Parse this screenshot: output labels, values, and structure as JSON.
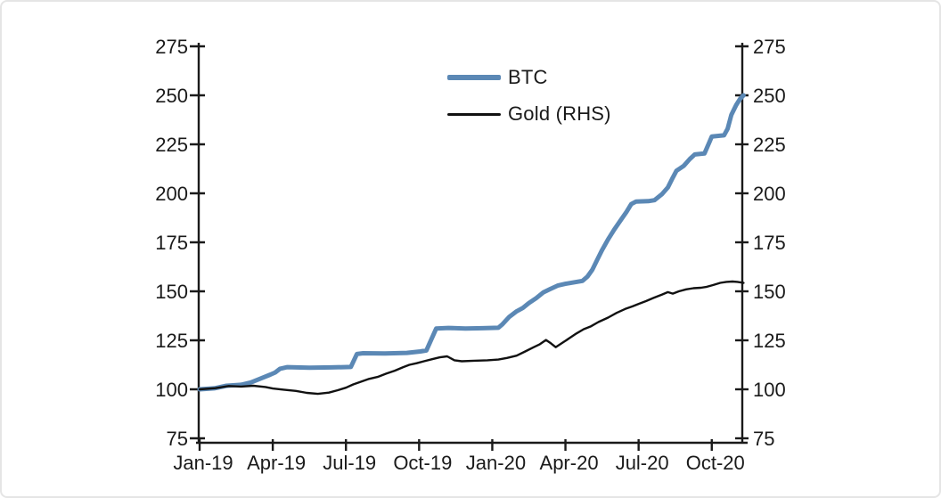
{
  "chart_data": {
    "type": "line",
    "title": "",
    "xlabel": "",
    "ylabel": "",
    "dual_axis": true,
    "grid": false,
    "legend_position": "top-center",
    "ylim": [
      75,
      275
    ],
    "yticks": [
      "275",
      "250",
      "225",
      "200",
      "175",
      "150",
      "125",
      "100",
      "75"
    ],
    "ytick_values": [
      275,
      250,
      225,
      200,
      175,
      150,
      125,
      100,
      75
    ],
    "x_tick_labels": [
      "Jan-19",
      "Apr-19",
      "Jul-19",
      "Oct-19",
      "Jan-20",
      "Apr-20",
      "Jul-20",
      "Oct-20"
    ],
    "x_tick_months": [
      0,
      3,
      6,
      9,
      12,
      15,
      18,
      21
    ],
    "x_range_months": [
      0,
      22.3
    ],
    "series": [
      {
        "name": "BTC",
        "axis": "left",
        "color": "#5b88b5",
        "line_width": 5,
        "points": [
          [
            0,
            100
          ],
          [
            0.6,
            100.5
          ],
          [
            1.1,
            101.8
          ],
          [
            1.7,
            102.3
          ],
          [
            2.1,
            103.5
          ],
          [
            2.5,
            105.5
          ],
          [
            2.9,
            107.5
          ],
          [
            3.1,
            108.6
          ],
          [
            3.3,
            110.5
          ],
          [
            3.6,
            111.3
          ],
          [
            4.5,
            111
          ],
          [
            5.4,
            111.2
          ],
          [
            6.2,
            111.4
          ],
          [
            6.3,
            114
          ],
          [
            6.45,
            118
          ],
          [
            6.7,
            118.4
          ],
          [
            7.6,
            118.3
          ],
          [
            8.5,
            118.6
          ],
          [
            9.05,
            119.3
          ],
          [
            9.3,
            119.8
          ],
          [
            9.45,
            124
          ],
          [
            9.7,
            131
          ],
          [
            10.2,
            131.3
          ],
          [
            10.9,
            131
          ],
          [
            11.6,
            131.2
          ],
          [
            12.25,
            131.4
          ],
          [
            12.4,
            133
          ],
          [
            12.7,
            137
          ],
          [
            13,
            139.8
          ],
          [
            13.25,
            141.5
          ],
          [
            13.5,
            144
          ],
          [
            13.8,
            146.5
          ],
          [
            14.1,
            149.5
          ],
          [
            14.35,
            151
          ],
          [
            14.7,
            153
          ],
          [
            15,
            153.8
          ],
          [
            15.35,
            154.6
          ],
          [
            15.7,
            155.3
          ],
          [
            15.9,
            157.5
          ],
          [
            16.1,
            161
          ],
          [
            16.3,
            166
          ],
          [
            16.5,
            171
          ],
          [
            16.75,
            176.5
          ],
          [
            17,
            181.5
          ],
          [
            17.25,
            186
          ],
          [
            17.5,
            190.5
          ],
          [
            17.7,
            194.5
          ],
          [
            17.9,
            195.8
          ],
          [
            18.4,
            196
          ],
          [
            18.65,
            196.5
          ],
          [
            18.95,
            199.5
          ],
          [
            19.2,
            203
          ],
          [
            19.4,
            208
          ],
          [
            19.55,
            211.5
          ],
          [
            19.85,
            214
          ],
          [
            20.1,
            217.5
          ],
          [
            20.3,
            219.8
          ],
          [
            20.7,
            220.3
          ],
          [
            20.9,
            226
          ],
          [
            21,
            229
          ],
          [
            21.5,
            229.6
          ],
          [
            21.65,
            233
          ],
          [
            21.8,
            240
          ],
          [
            22,
            245
          ],
          [
            22.15,
            248
          ],
          [
            22.3,
            250
          ]
        ]
      },
      {
        "name": "Gold (RHS)",
        "axis": "right",
        "color": "#111111",
        "line_width": 2.4,
        "points": [
          [
            0,
            100
          ],
          [
            0.65,
            100.6
          ],
          [
            1.2,
            101.7
          ],
          [
            1.7,
            101.4
          ],
          [
            2.2,
            101.8
          ],
          [
            2.7,
            101.2
          ],
          [
            3,
            100.4
          ],
          [
            3.45,
            99.8
          ],
          [
            3.95,
            99.2
          ],
          [
            4.4,
            98.2
          ],
          [
            4.85,
            97.7
          ],
          [
            5.3,
            98.3
          ],
          [
            5.65,
            99.5
          ],
          [
            6,
            100.8
          ],
          [
            6.3,
            102.5
          ],
          [
            6.6,
            103.8
          ],
          [
            6.95,
            105.3
          ],
          [
            7.3,
            106.3
          ],
          [
            7.65,
            108
          ],
          [
            8,
            109.5
          ],
          [
            8.35,
            111.3
          ],
          [
            8.6,
            112.5
          ],
          [
            8.9,
            113.3
          ],
          [
            9.2,
            114.3
          ],
          [
            9.55,
            115.4
          ],
          [
            9.85,
            116.3
          ],
          [
            10.15,
            116.8
          ],
          [
            10.45,
            114.8
          ],
          [
            10.75,
            114.3
          ],
          [
            11.25,
            114.6
          ],
          [
            11.8,
            114.8
          ],
          [
            12.25,
            115.2
          ],
          [
            12.6,
            116
          ],
          [
            13,
            117.2
          ],
          [
            13.35,
            119.3
          ],
          [
            13.7,
            121.5
          ],
          [
            13.95,
            123
          ],
          [
            14.2,
            125.2
          ],
          [
            14.4,
            123.5
          ],
          [
            14.6,
            121.5
          ],
          [
            14.85,
            123.5
          ],
          [
            15.15,
            126
          ],
          [
            15.45,
            128.5
          ],
          [
            15.75,
            130.7
          ],
          [
            16.05,
            132.2
          ],
          [
            16.35,
            134.3
          ],
          [
            16.75,
            136.6
          ],
          [
            17.1,
            139
          ],
          [
            17.45,
            141
          ],
          [
            17.75,
            142.3
          ],
          [
            18,
            143.6
          ],
          [
            18.3,
            145
          ],
          [
            18.6,
            146.6
          ],
          [
            18.95,
            148.3
          ],
          [
            19.2,
            149.6
          ],
          [
            19.4,
            148.8
          ],
          [
            19.65,
            150
          ],
          [
            19.95,
            151
          ],
          [
            20.25,
            151.6
          ],
          [
            20.55,
            151.8
          ],
          [
            20.8,
            152.3
          ],
          [
            21.05,
            153.2
          ],
          [
            21.35,
            154.3
          ],
          [
            21.6,
            154.8
          ],
          [
            21.85,
            155
          ],
          [
            22.05,
            154.8
          ],
          [
            22.3,
            154.3
          ]
        ]
      }
    ]
  }
}
